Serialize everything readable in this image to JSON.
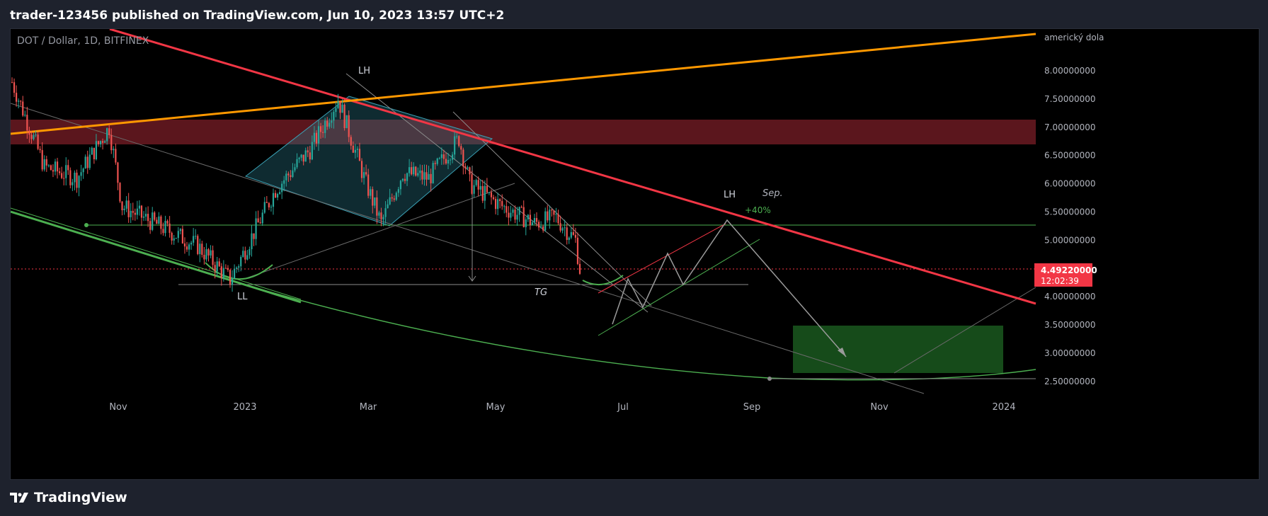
{
  "header": {
    "publisher_line": "trader-123456 published on TradingView.com, Jun 10, 2023 13:57 UTC+2"
  },
  "footer": {
    "brand": "TradingView",
    "logo_icon": "tradingview-logo-icon"
  },
  "chart": {
    "symbol_label": "DOT / Dollar, 1D, BITFINEX",
    "currency_label": "americký dola",
    "price_scale": [
      "8.00000000",
      "7.50000000",
      "7.00000000",
      "6.50000000",
      "6.00000000",
      "5.50000000",
      "5.00000000",
      "4.00000000",
      "3.50000000",
      "3.00000000",
      "2.50000000"
    ],
    "time_scale": [
      "Nov",
      "2023",
      "Mar",
      "May",
      "Jul",
      "Sep",
      "Nov",
      "2024"
    ],
    "last_price": {
      "value": "4.49220000",
      "countdown": "12:02:39"
    },
    "annotations": {
      "lh_top": "LH",
      "lh_right": "LH",
      "ll": "LL",
      "tg": "TG",
      "month_note": "Sep.",
      "percent": "+40%"
    },
    "colors": {
      "up": "#26a69a",
      "down": "#ef5350",
      "resistance_line": "#f23645",
      "orange_line": "#ff9800",
      "green_line": "#4caf50",
      "zone_red": "#6b1a22",
      "zone_green": "#1b5e20",
      "diamond": "#2a7a8c"
    }
  },
  "chart_data": {
    "type": "candlestick",
    "title": "DOT / Dollar, 1D, BITFINEX",
    "ylim": [
      2.3,
      8.6
    ],
    "y_ticks": [
      8.0,
      7.5,
      7.0,
      6.5,
      6.0,
      5.5,
      5.0,
      4.0,
      3.5,
      3.0,
      2.5
    ],
    "x_ticks": [
      "Nov",
      "2023",
      "Mar",
      "May",
      "Jul",
      "Sep",
      "Nov",
      "2024"
    ],
    "last_price": 4.4922,
    "approx_close_path": [
      {
        "date": "2022-09-20",
        "close": 7.8
      },
      {
        "date": "2022-10-05",
        "close": 6.3
      },
      {
        "date": "2022-10-20",
        "close": 6.1
      },
      {
        "date": "2022-11-04",
        "close": 7.0
      },
      {
        "date": "2022-11-10",
        "close": 5.6
      },
      {
        "date": "2022-11-25",
        "close": 5.3
      },
      {
        "date": "2022-12-15",
        "close": 4.9
      },
      {
        "date": "2022-12-30",
        "close": 4.3
      },
      {
        "date": "2023-01-20",
        "close": 5.9
      },
      {
        "date": "2023-02-05",
        "close": 6.6
      },
      {
        "date": "2023-02-18",
        "close": 7.5
      },
      {
        "date": "2023-03-03",
        "close": 6.0
      },
      {
        "date": "2023-03-10",
        "close": 5.3
      },
      {
        "date": "2023-03-20",
        "close": 6.2
      },
      {
        "date": "2023-04-01",
        "close": 6.1
      },
      {
        "date": "2023-04-15",
        "close": 6.8
      },
      {
        "date": "2023-04-20",
        "close": 6.0
      },
      {
        "date": "2023-05-05",
        "close": 5.6
      },
      {
        "date": "2023-05-20",
        "close": 5.3
      },
      {
        "date": "2023-05-30",
        "close": 5.4
      },
      {
        "date": "2023-06-08",
        "close": 5.0
      },
      {
        "date": "2023-06-10",
        "close": 4.49
      }
    ]
  }
}
